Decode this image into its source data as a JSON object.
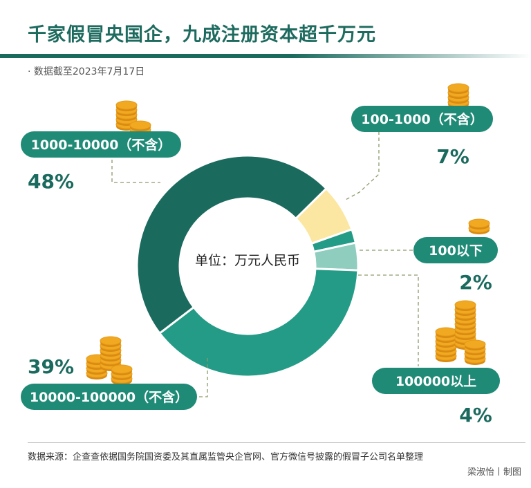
{
  "title": "千家假冒央国企，九成注册资本超千万元",
  "subtitle": "· 数据截至2023年7月17日",
  "footer": {
    "source": "数据来源：企查查依据国务院国资委及其直属监管央企官网、官方微信号披露的假冒子公司名单整理",
    "credit": "梁淑怡丨制图"
  },
  "colors": {
    "dark_teal": "#1a6a5e",
    "teal": "#239b86",
    "pale_yellow": "#fbe7a1",
    "mint": "#8fcdbf",
    "pill": "#1f8a76",
    "coin": "#f2a922"
  },
  "chart_data": {
    "type": "pie",
    "style": "donut",
    "center_label": "单位：万元人民币",
    "slices": [
      {
        "label": "100-1000（不含）",
        "value": 7,
        "value_label": "7%",
        "color": "#fbe7a1"
      },
      {
        "label": "100以下",
        "value": 2,
        "value_label": "2%",
        "color": "#239b86"
      },
      {
        "label": "100000以上",
        "value": 4,
        "value_label": "4%",
        "color": "#8fcdbf"
      },
      {
        "label": "10000-100000（不含）",
        "value": 39,
        "value_label": "39%",
        "color": "#239b86"
      },
      {
        "label": "1000-10000（不含）",
        "value": 48,
        "value_label": "48%",
        "color": "#1a6a5e"
      }
    ]
  }
}
